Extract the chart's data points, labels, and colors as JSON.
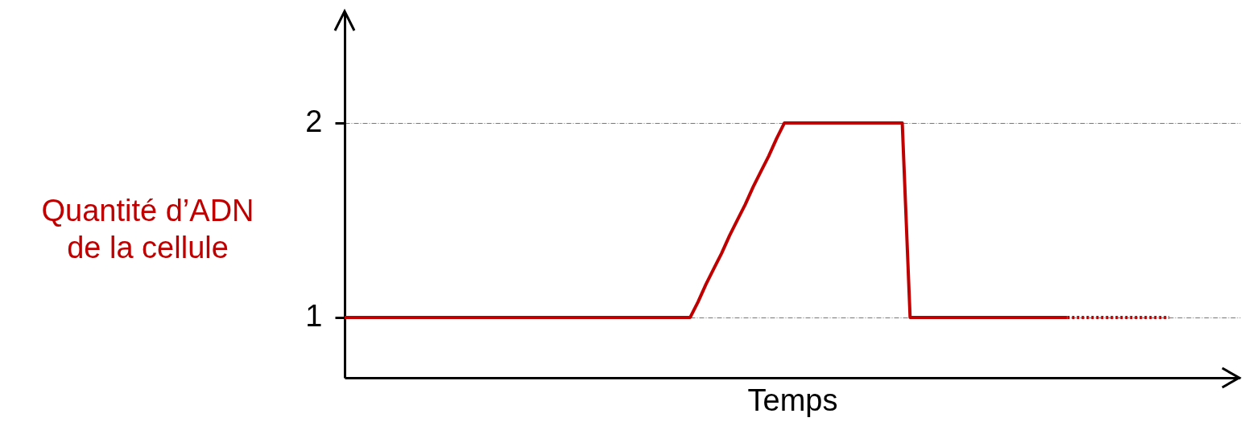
{
  "chart_data": {
    "type": "line",
    "xlabel": "Temps",
    "ylabel": "Quantité d’ADN\nde la cellule",
    "ylim": [
      0.69,
      2.57
    ],
    "yticks": [
      1,
      2
    ],
    "grid": "y",
    "tick_labels": "y",
    "categories": [
      null,
      null,
      null,
      null,
      null,
      null,
      null,
      null,
      null,
      null,
      null,
      null,
      null,
      null,
      null,
      null,
      null,
      null,
      null,
      null,
      null,
      null,
      null,
      null,
      null,
      null,
      null,
      null,
      null,
      null,
      null,
      null,
      null,
      null,
      null,
      null,
      null,
      null,
      null,
      null,
      null,
      null,
      null,
      null,
      null,
      null,
      null,
      null,
      null,
      null,
      null,
      null,
      null,
      null,
      null,
      null,
      null,
      null,
      null,
      null,
      null,
      null,
      null,
      null,
      null,
      null,
      null,
      null,
      null,
      null,
      null,
      null,
      null,
      null,
      null,
      null,
      null,
      null,
      null,
      null,
      null,
      null,
      null,
      null,
      null,
      null,
      null,
      null,
      null,
      null,
      null,
      null,
      null,
      null,
      null,
      null,
      null,
      null,
      null,
      null,
      null,
      null,
      null,
      null,
      null,
      null,
      null,
      null,
      null,
      null,
      null,
      null,
      null,
      null,
      null
    ],
    "series": [
      {
        "color": "#c00000",
        "line_style": "solid",
        "values": [
          1,
          1,
          1,
          1,
          1,
          1,
          1,
          1,
          1,
          1,
          1,
          1,
          1,
          1,
          1,
          1,
          1,
          1,
          1,
          1,
          1,
          1,
          1,
          1,
          1,
          1,
          1,
          1,
          1,
          1,
          1,
          1,
          1,
          1,
          1,
          1,
          1,
          1,
          1,
          1,
          1,
          1,
          1,
          1,
          1,
          1.08,
          1.17,
          1.25,
          1.33,
          1.42,
          1.5,
          1.58,
          1.67,
          1.75,
          1.83,
          1.92,
          2,
          2,
          2,
          2,
          2,
          2,
          2,
          2,
          2,
          2,
          2,
          2,
          2,
          2,
          2,
          2,
          1,
          1,
          1,
          1,
          1,
          1,
          1,
          1,
          1,
          1,
          1,
          1,
          1,
          1,
          1,
          1,
          1,
          1,
          1,
          1,
          1,
          null,
          null,
          null,
          null,
          null,
          null,
          null,
          null,
          null,
          null,
          null,
          null,
          null,
          null,
          null,
          null,
          null,
          null,
          null,
          null,
          null,
          null
        ]
      },
      {
        "color": "#c00000",
        "line_style": "dotted",
        "values": [
          null,
          null,
          null,
          null,
          null,
          null,
          null,
          null,
          null,
          null,
          null,
          null,
          null,
          null,
          null,
          null,
          null,
          null,
          null,
          null,
          null,
          null,
          null,
          null,
          null,
          null,
          null,
          null,
          null,
          null,
          null,
          null,
          null,
          null,
          null,
          null,
          null,
          null,
          null,
          null,
          null,
          null,
          null,
          null,
          null,
          null,
          null,
          null,
          null,
          null,
          null,
          null,
          null,
          null,
          null,
          null,
          null,
          null,
          null,
          null,
          null,
          null,
          null,
          null,
          null,
          null,
          null,
          null,
          null,
          null,
          null,
          null,
          null,
          null,
          null,
          null,
          null,
          null,
          null,
          null,
          null,
          null,
          null,
          null,
          null,
          null,
          null,
          null,
          null,
          null,
          null,
          null,
          1,
          1,
          1,
          1,
          1,
          1,
          1,
          1,
          1,
          1,
          1,
          1,
          1,
          1,
          null,
          null,
          null,
          null,
          null,
          null,
          null,
          null,
          null
        ]
      }
    ]
  }
}
